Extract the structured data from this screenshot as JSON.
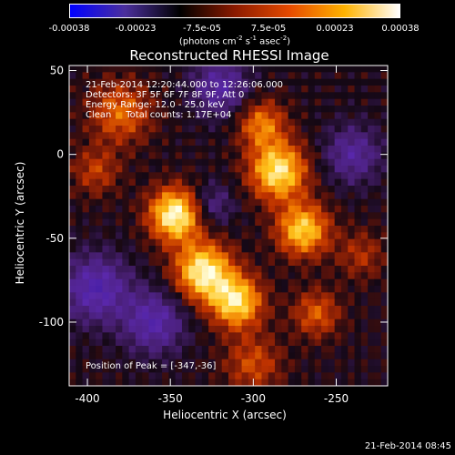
{
  "colorbar": {
    "tick_labels": [
      "-0.00038",
      "-0.00023",
      "-7.5e-05",
      "7.5e-05",
      "0.00023",
      "0.00038"
    ],
    "unit_text": "(photons cm",
    "unit_exp1": "-2",
    "unit_mid": " s",
    "unit_exp2": "-1",
    "unit_end": " asec",
    "unit_exp3": "-2",
    "unit_close": ")",
    "colors": [
      "#0000ff",
      "#4b2f9d",
      "#000000",
      "#8b1a00",
      "#e64a00",
      "#ffb300",
      "#ffffff"
    ]
  },
  "info": {
    "time_range": "21-Feb-2014 12:20:44.000 to 12:26:06.000",
    "detectors": "Detectors: 3F 5F 6F 7F 8F 9F, Att 0",
    "energy": "Energy Range: 12.0 - 25.0 keV",
    "algorithm": "Clean     Total counts: 1.17E+04",
    "peak": "Position of Peak = [-347,-36]"
  },
  "timestamp": "21-Feb-2014 08:45",
  "chart_data": {
    "type": "heatmap",
    "title": "Reconstructed RHESSI Image",
    "xlabel": "Heliocentric X (arcsec)",
    "ylabel": "Heliocentric Y (arcsec)",
    "xlim": [
      -411,
      -219
    ],
    "ylim": [
      -138,
      53
    ],
    "x_ticks": [
      -400,
      -350,
      -300,
      -250
    ],
    "y_ticks": [
      50,
      0,
      -50,
      -100
    ],
    "x_tick_labels": [
      "-400",
      "-350",
      "-300",
      "-250"
    ],
    "y_tick_labels": [
      "50",
      "0",
      "-50",
      "-100"
    ],
    "colorbar_range": [
      -0.00038,
      0.00038
    ],
    "peak_position": [
      -347,
      -36
    ],
    "sources": [
      {
        "x": -347,
        "y": -36,
        "amp": 1.0,
        "sigma": 11
      },
      {
        "x": -330,
        "y": -70,
        "amp": 0.95,
        "sigma": 12
      },
      {
        "x": -310,
        "y": -88,
        "amp": 0.85,
        "sigma": 11
      },
      {
        "x": -285,
        "y": -10,
        "amp": 0.9,
        "sigma": 12
      },
      {
        "x": -270,
        "y": -45,
        "amp": 0.8,
        "sigma": 11
      },
      {
        "x": -295,
        "y": 18,
        "amp": 0.55,
        "sigma": 10
      },
      {
        "x": -380,
        "y": 25,
        "amp": 0.5,
        "sigma": 13
      },
      {
        "x": -395,
        "y": -10,
        "amp": 0.35,
        "sigma": 10
      },
      {
        "x": -262,
        "y": -95,
        "amp": 0.45,
        "sigma": 10
      },
      {
        "x": -300,
        "y": -125,
        "amp": 0.4,
        "sigma": 12
      },
      {
        "x": -395,
        "y": -80,
        "amp": -0.6,
        "sigma": 14
      },
      {
        "x": -360,
        "y": -100,
        "amp": -0.55,
        "sigma": 13
      },
      {
        "x": -320,
        "y": 40,
        "amp": -0.5,
        "sigma": 12
      },
      {
        "x": -240,
        "y": 0,
        "amp": -0.45,
        "sigma": 12
      },
      {
        "x": -325,
        "y": -30,
        "amp": -0.35,
        "sigma": 9
      },
      {
        "x": -235,
        "y": -60,
        "amp": 0.3,
        "sigma": 10
      }
    ]
  }
}
